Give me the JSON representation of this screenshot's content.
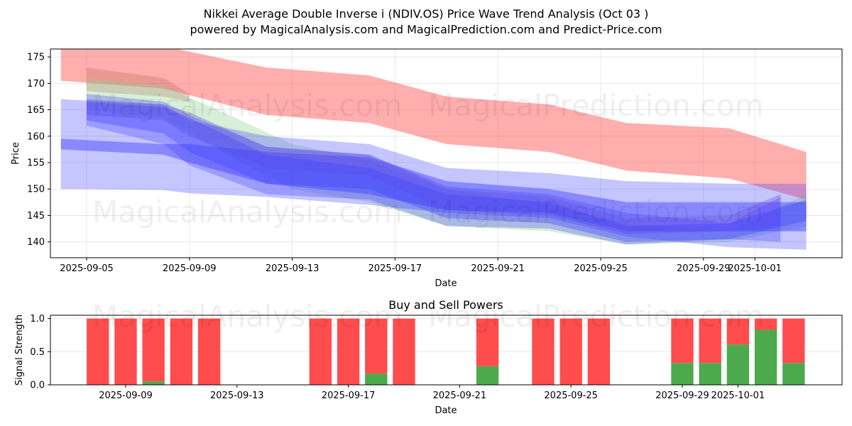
{
  "header": {
    "title": "Nikkei Average Double Inverse i (NDIV.OS) Price Wave Trend Analysis (Oct 03 )",
    "subtitle": "powered by MagicalAnalysis.com and MagicalPrediction.com and Predict-Price.com"
  },
  "watermarks": [
    "MagicalAnalysis.com",
    "MagicalPrediction.com"
  ],
  "colors": {
    "red": "#ff4c4c",
    "green": "#4caa4c",
    "blue": "#4040ff",
    "lightgreen": "#90d090"
  },
  "chart_data": [
    {
      "type": "area",
      "title": "",
      "xlabel": "Date",
      "ylabel": "Price",
      "ylim": [
        137,
        176.5
      ],
      "xlim": [
        "2025-09-03T15:00",
        "2025-10-04T12:00"
      ],
      "grid": true,
      "yticks": [
        140,
        145,
        150,
        155,
        160,
        165,
        170,
        175
      ],
      "xticks": [
        "2025-09-05",
        "2025-09-09",
        "2025-09-13",
        "2025-09-17",
        "2025-09-21",
        "2025-09-25",
        "2025-09-29",
        "2025-10-01"
      ],
      "series": [
        {
          "name": "red-band",
          "color": "#ff4c4c",
          "opacity": 0.45,
          "x": [
            "2025-09-04",
            "2025-09-08",
            "2025-09-12",
            "2025-09-16",
            "2025-09-19",
            "2025-09-23",
            "2025-09-26",
            "2025-09-30",
            "2025-10-03"
          ],
          "lower": [
            170.5,
            169.0,
            164.0,
            162.5,
            158.5,
            157.0,
            153.5,
            152.0,
            148.0
          ],
          "upper": [
            177.0,
            177.0,
            173.0,
            171.5,
            167.5,
            166.0,
            162.5,
            161.5,
            157.0
          ]
        },
        {
          "name": "brown-band",
          "color": "#c07060",
          "opacity": 0.35,
          "x": [
            "2025-09-05",
            "2025-09-08",
            "2025-09-09"
          ],
          "lower": [
            168.5,
            167.5,
            166.5
          ],
          "upper": [
            173.0,
            171.0,
            168.0
          ]
        },
        {
          "name": "green-band-1",
          "color": "#90d090",
          "opacity": 0.35,
          "x": [
            "2025-09-05",
            "2025-09-08",
            "2025-09-11",
            "2025-09-13",
            "2025-09-16",
            "2025-09-19",
            "2025-09-23",
            "2025-09-26",
            "2025-09-30",
            "2025-10-03"
          ],
          "lower": [
            165.0,
            163.5,
            155.0,
            150.0,
            147.5,
            143.0,
            142.0,
            139.5,
            140.0,
            143.0
          ],
          "upper": [
            171.0,
            169.5,
            163.0,
            158.5,
            155.5,
            150.0,
            147.0,
            143.5,
            142.0,
            149.0
          ]
        },
        {
          "name": "blue-band-1",
          "color": "#4040ff",
          "opacity": 0.3,
          "x": [
            "2025-09-04",
            "2025-09-08",
            "2025-09-09",
            "2025-09-12",
            "2025-09-16",
            "2025-09-19",
            "2025-09-23",
            "2025-09-26",
            "2025-09-30",
            "2025-10-03"
          ],
          "lower": [
            150.0,
            149.8,
            149.2,
            148.5,
            147.0,
            145.5,
            144.5,
            141.0,
            139.0,
            138.5
          ],
          "upper": [
            167.0,
            166.0,
            163.0,
            160.0,
            158.5,
            154.0,
            153.0,
            151.5,
            151.0,
            151.0
          ]
        },
        {
          "name": "blue-band-2",
          "color": "#4040ff",
          "opacity": 0.45,
          "x": [
            "2025-09-04",
            "2025-09-08",
            "2025-09-09",
            "2025-09-12",
            "2025-09-16",
            "2025-09-19",
            "2025-09-23",
            "2025-09-26",
            "2025-09-30",
            "2025-10-03"
          ],
          "lower": [
            157.5,
            156.5,
            155.0,
            151.0,
            149.0,
            146.0,
            145.5,
            142.0,
            142.0,
            142.0
          ],
          "upper": [
            159.5,
            158.5,
            158.5,
            157.0,
            156.0,
            151.5,
            150.0,
            147.5,
            147.5,
            147.5
          ]
        },
        {
          "name": "blue-band-3",
          "color": "#4040ff",
          "opacity": 0.3,
          "x": [
            "2025-09-05",
            "2025-09-08",
            "2025-09-09",
            "2025-09-12",
            "2025-09-16",
            "2025-09-19",
            "2025-09-23",
            "2025-09-26",
            "2025-09-30",
            "2025-10-02"
          ],
          "lower": [
            162.0,
            158.5,
            154.5,
            149.0,
            148.0,
            143.0,
            142.5,
            139.5,
            140.5,
            140.0
          ],
          "upper": [
            168.0,
            166.5,
            164.0,
            158.0,
            156.5,
            150.5,
            149.0,
            145.5,
            143.5,
            148.5
          ]
        },
        {
          "name": "purple-band",
          "color": "#6a50e0",
          "opacity": 0.35,
          "x": [
            "2025-09-05",
            "2025-09-08",
            "2025-09-09",
            "2025-09-12",
            "2025-09-16",
            "2025-09-19",
            "2025-09-23",
            "2025-09-26",
            "2025-09-30",
            "2025-10-02"
          ],
          "lower": [
            164.0,
            163.0,
            160.0,
            154.0,
            152.5,
            146.0,
            145.0,
            141.5,
            142.0,
            143.0
          ],
          "upper": [
            167.0,
            166.0,
            164.5,
            158.0,
            156.5,
            150.0,
            148.5,
            144.5,
            145.0,
            149.0
          ]
        },
        {
          "name": "blue-band-4",
          "color": "#4040ff",
          "opacity": 0.35,
          "x": [
            "2025-09-05",
            "2025-09-08",
            "2025-09-09",
            "2025-09-12",
            "2025-09-16",
            "2025-09-19",
            "2025-09-23",
            "2025-09-26",
            "2025-09-30",
            "2025-10-03"
          ],
          "lower": [
            163.0,
            160.5,
            157.0,
            151.0,
            150.0,
            144.5,
            143.5,
            140.0,
            140.5,
            144.0
          ],
          "upper": [
            166.5,
            165.5,
            163.5,
            156.5,
            154.0,
            149.0,
            147.5,
            143.0,
            143.5,
            148.0
          ]
        }
      ]
    },
    {
      "type": "bar",
      "title": "Buy and Sell Powers",
      "xlabel": "Date",
      "ylabel": "Signal Strength",
      "ylim": [
        0,
        1.05
      ],
      "yticks": [
        "0.0",
        "0.5",
        "1.0"
      ],
      "xticks": [
        "2025-09-09",
        "2025-09-13",
        "2025-09-17",
        "2025-09-21",
        "2025-09-25",
        "2025-09-29",
        "2025-10-01"
      ],
      "grid": true,
      "categories": [
        "2025-09-08",
        "2025-09-09",
        "2025-09-10",
        "2025-09-11",
        "2025-09-12",
        "2025-09-16",
        "2025-09-17",
        "2025-09-18",
        "2025-09-19",
        "2025-09-22",
        "2025-09-24",
        "2025-09-25",
        "2025-09-26",
        "2025-09-29",
        "2025-09-30",
        "2025-10-01",
        "2025-10-02",
        "2025-10-03"
      ],
      "series": [
        {
          "name": "Buy",
          "color": "#4caa4c",
          "values": [
            0,
            0,
            0.05,
            0,
            0,
            0,
            0,
            0.17,
            0,
            0.28,
            0,
            0,
            0,
            0.33,
            0.33,
            0.61,
            0.83,
            0.33
          ]
        },
        {
          "name": "Sell",
          "color": "#ff4c4c",
          "values": [
            1,
            1,
            0.95,
            1,
            1,
            1,
            1,
            0.83,
            1,
            0.72,
            1,
            1,
            1,
            0.67,
            0.67,
            0.39,
            0.17,
            0.67
          ]
        }
      ]
    }
  ]
}
